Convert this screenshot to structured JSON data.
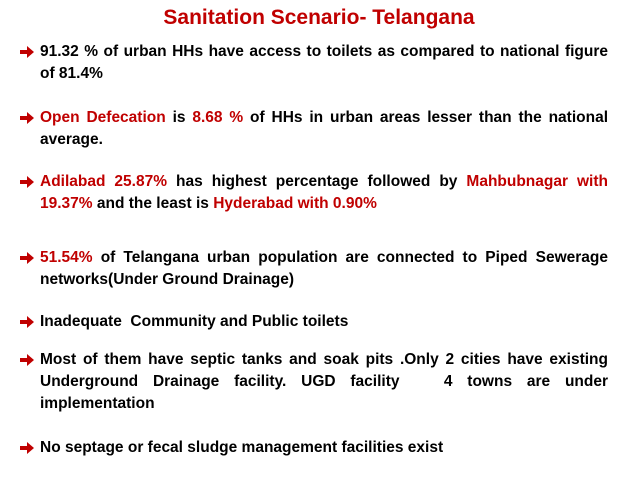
{
  "header": {
    "title": "Sanitation Scenario- Telangana"
  },
  "bullets": [
    {
      "segments": [
        {
          "text": "91.32 % of urban HHs have access to toilets as compared to national figure of 81.4%",
          "highlight": false
        }
      ]
    },
    {
      "segments": [
        {
          "text": "Open Defecation",
          "highlight": true
        },
        {
          "text": " is ",
          "highlight": false
        },
        {
          "text": "8.68 %",
          "highlight": true
        },
        {
          "text": " of HHs in urban areas lesser than the national average.",
          "highlight": false
        }
      ]
    },
    {
      "segments": [
        {
          "text": "Adilabad 25.87%",
          "highlight": true
        },
        {
          "text": " has highest percentage followed by ",
          "highlight": false
        },
        {
          "text": "Mahbubnagar with 19.37%",
          "highlight": true
        },
        {
          "text": " and the least is ",
          "highlight": false
        },
        {
          "text": "Hyderabad with 0.90%",
          "highlight": true
        }
      ]
    },
    {
      "segments": [
        {
          "text": "51.54%",
          "highlight": true
        },
        {
          "text": " of Telangana urban population are connected to Piped Sewerage networks(Under Ground Drainage)",
          "highlight": false
        }
      ]
    },
    {
      "segments": [
        {
          "text": "Inadequate  Community and Public toilets",
          "highlight": false
        }
      ]
    },
    {
      "segments": [
        {
          "text": "Most of them have septic tanks and soak pits .Only 2 cities have existing Underground Drainage facility. UGD facility   4 towns are under implementation",
          "highlight": false
        }
      ]
    },
    {
      "segments": [
        {
          "text": "No septage or fecal sludge management facilities exist",
          "highlight": false
        }
      ]
    }
  ]
}
